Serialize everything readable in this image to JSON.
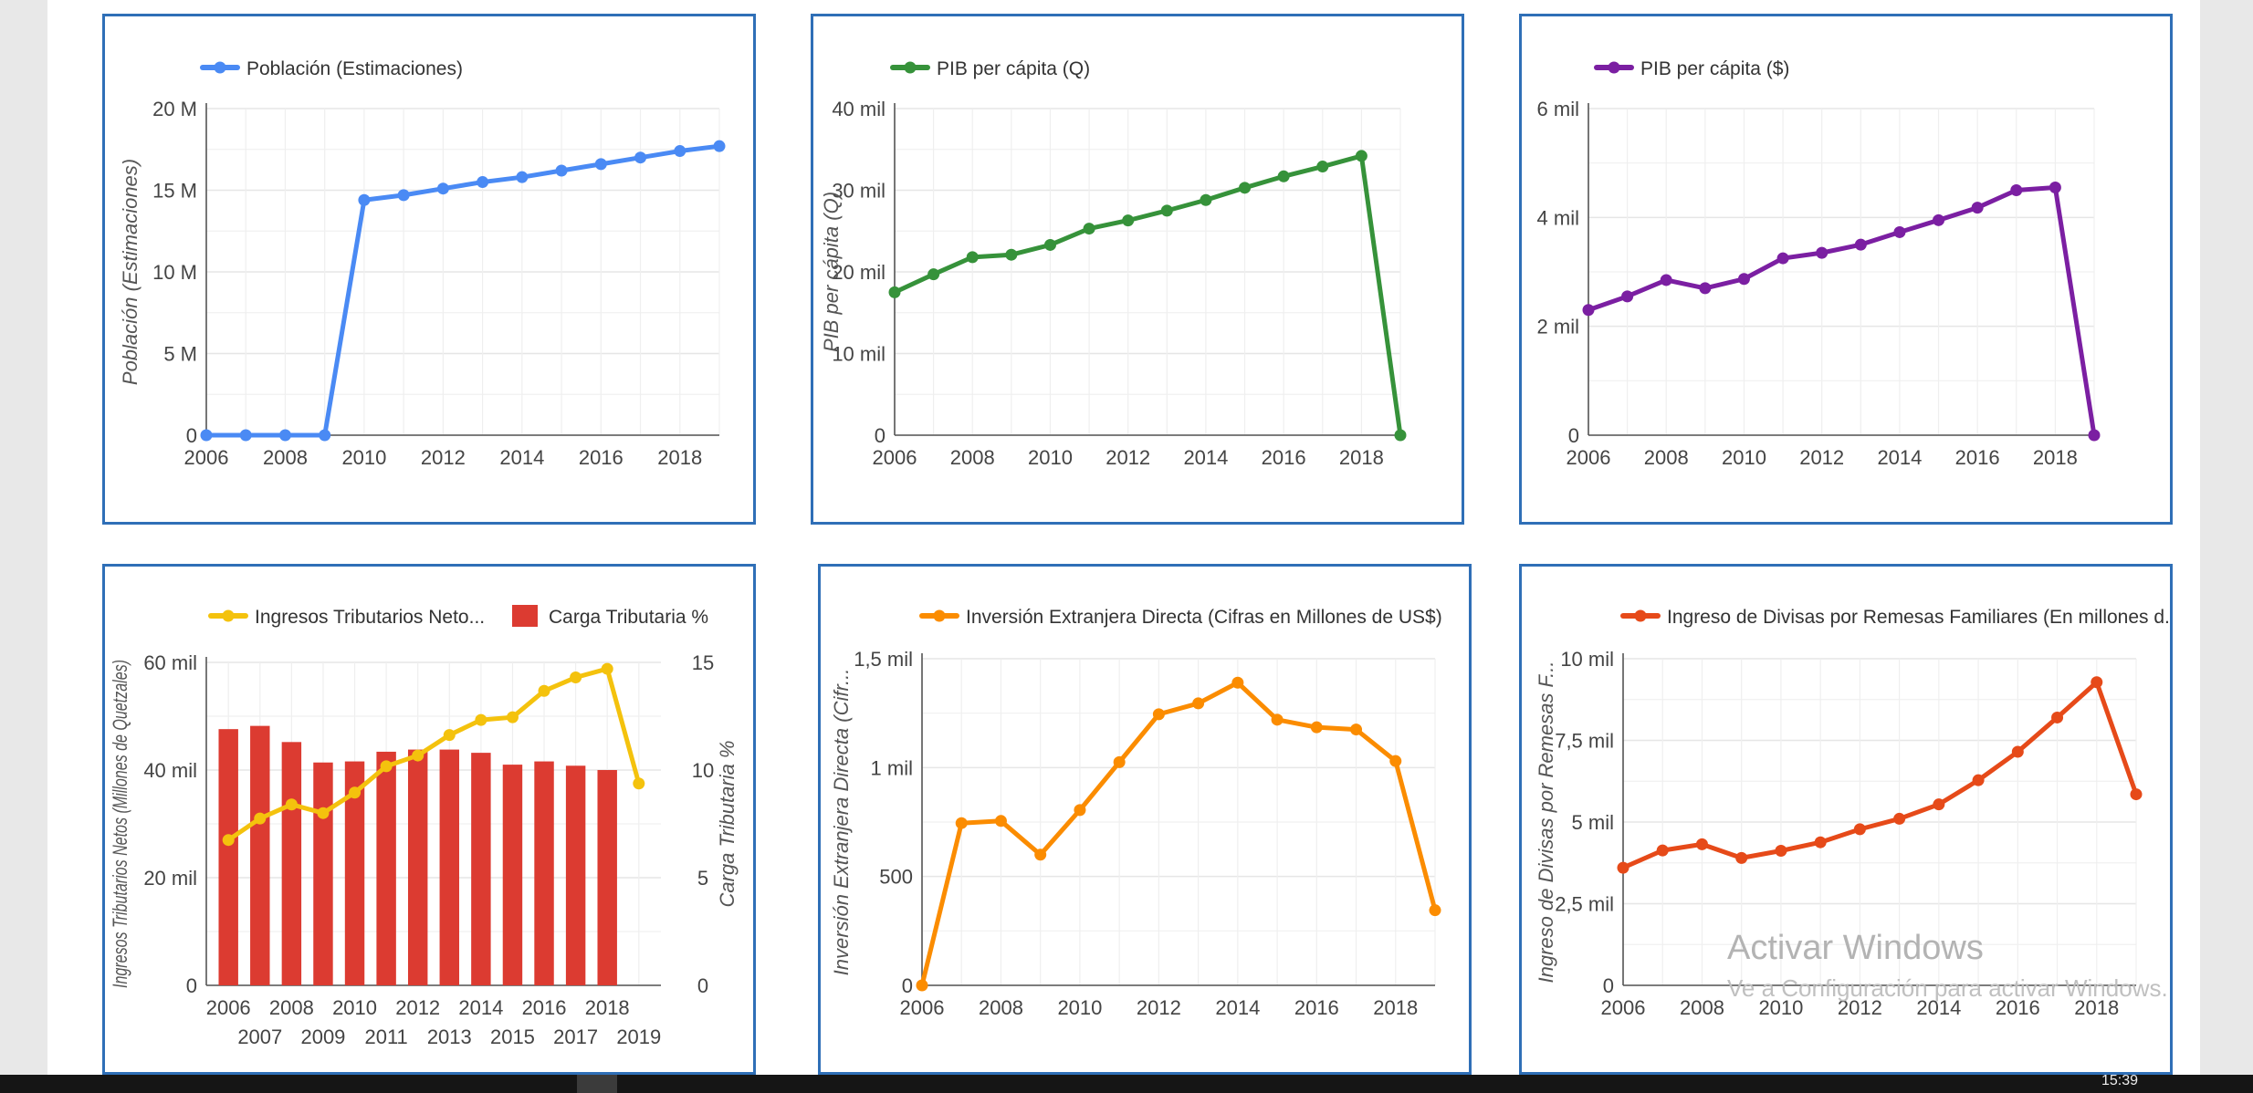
{
  "colors": {
    "panel_border": "#2f6fb7",
    "grid": "#e6e6e6",
    "axis": "#555555",
    "text": "#444444"
  },
  "watermark": {
    "title": "Activar Windows",
    "subtitle": "Ve a Configuración para activar Windows."
  },
  "taskbar": {
    "clock": "15:39"
  },
  "chart_data": [
    {
      "type": "line",
      "legend": [
        "Población (Estimaciones)"
      ],
      "ylabel": "Población (Estimaciones)",
      "y2label": "",
      "x": [
        2006,
        2007,
        2008,
        2009,
        2010,
        2011,
        2012,
        2013,
        2014,
        2015,
        2016,
        2017,
        2018,
        2019
      ],
      "xlim": [
        2006,
        2019
      ],
      "xticks": [
        "2006",
        "2008",
        "2010",
        "2012",
        "2014",
        "2016",
        "2018"
      ],
      "xtick_values": [
        2006,
        2008,
        2010,
        2012,
        2014,
        2016,
        2018
      ],
      "xticks_row2": [],
      "xtick_values_row2": [],
      "ylim": [
        0,
        20000000
      ],
      "yticks": [
        "0",
        "5 M",
        "10 M",
        "15 M",
        "20 M"
      ],
      "ytick_values": [
        0,
        5000000,
        10000000,
        15000000,
        20000000
      ],
      "series": [
        {
          "name": "Población (Estimaciones)",
          "color": "#4a8af4",
          "values": [
            0,
            0,
            0,
            0,
            14400000,
            14700000,
            15100000,
            15500000,
            15800000,
            16200000,
            16600000,
            17000000,
            17400000,
            17700000
          ]
        }
      ]
    },
    {
      "type": "line",
      "legend": [
        "PIB per cápita (Q)"
      ],
      "ylabel": "PIB per cápita (Q)",
      "y2label": "",
      "x": [
        2006,
        2007,
        2008,
        2009,
        2010,
        2011,
        2012,
        2013,
        2014,
        2015,
        2016,
        2017,
        2018,
        2019
      ],
      "xlim": [
        2006,
        2019
      ],
      "xticks": [
        "2006",
        "2008",
        "2010",
        "2012",
        "2014",
        "2016",
        "2018"
      ],
      "xtick_values": [
        2006,
        2008,
        2010,
        2012,
        2014,
        2016,
        2018
      ],
      "xticks_row2": [],
      "xtick_values_row2": [],
      "ylim": [
        0,
        40000
      ],
      "yticks": [
        "0",
        "10 mil",
        "20 mil",
        "30 mil",
        "40 mil"
      ],
      "ytick_values": [
        0,
        10000,
        20000,
        30000,
        40000
      ],
      "series": [
        {
          "name": "PIB per cápita (Q)",
          "color": "#36923a",
          "values": [
            17500,
            19700,
            21800,
            22100,
            23300,
            25300,
            26300,
            27500,
            28800,
            30300,
            31700,
            32900,
            34200,
            0
          ]
        }
      ]
    },
    {
      "type": "line",
      "legend": [
        "PIB per cápita ($)"
      ],
      "ylabel": "",
      "y2label": "",
      "x": [
        2006,
        2007,
        2008,
        2009,
        2010,
        2011,
        2012,
        2013,
        2014,
        2015,
        2016,
        2017,
        2018,
        2019
      ],
      "xlim": [
        2006,
        2019
      ],
      "xticks": [
        "2006",
        "2008",
        "2010",
        "2012",
        "2014",
        "2016",
        "2018"
      ],
      "xtick_values": [
        2006,
        2008,
        2010,
        2012,
        2014,
        2016,
        2018
      ],
      "xticks_row2": [],
      "xtick_values_row2": [],
      "ylim": [
        0,
        6000
      ],
      "yticks": [
        "0",
        "2 mil",
        "4 mil",
        "6 mil"
      ],
      "ytick_values": [
        0,
        2000,
        4000,
        6000
      ],
      "series": [
        {
          "name": "PIB per cápita ($)",
          "color": "#7b1fa2",
          "values": [
            2300,
            2550,
            2850,
            2700,
            2870,
            3250,
            3350,
            3500,
            3730,
            3950,
            4180,
            4500,
            4550,
            0
          ]
        }
      ]
    },
    {
      "type": "combo",
      "legend": [
        "Ingresos Tributarios Neto...",
        "Carga Tributaria %"
      ],
      "ylabel": "Ingresos Tributarios Netos (Millones de Quetzales)",
      "y2label": "Carga Tributaria %",
      "x": [
        2006,
        2007,
        2008,
        2009,
        2010,
        2011,
        2012,
        2013,
        2014,
        2015,
        2016,
        2017,
        2018,
        2019
      ],
      "xlim": [
        2005.3,
        2019.7
      ],
      "xticks": [
        "2006",
        "2008",
        "2010",
        "2012",
        "2014",
        "2016",
        "2018"
      ],
      "xtick_values": [
        2006,
        2008,
        2010,
        2012,
        2014,
        2016,
        2018
      ],
      "xticks_row2": [
        "2007",
        "2009",
        "2011",
        "2013",
        "2015",
        "2017",
        "2019"
      ],
      "xtick_values_row2": [
        2007,
        2009,
        2011,
        2013,
        2015,
        2017,
        2019
      ],
      "ylim": [
        0,
        60000
      ],
      "yticks": [
        "0",
        "20 mil",
        "40 mil",
        "60 mil"
      ],
      "ytick_values": [
        0,
        20000,
        40000,
        60000
      ],
      "y2lim": [
        0,
        15
      ],
      "y2ticks": [
        "0",
        "5",
        "10",
        "15"
      ],
      "y2tick_values": [
        0,
        5,
        10,
        15
      ],
      "bars": {
        "name": "Carga Tributaria %",
        "color": "#dc3b31",
        "values": [
          11.9,
          12.05,
          11.3,
          10.35,
          10.4,
          10.85,
          10.95,
          10.95,
          10.8,
          10.25,
          10.4,
          10.2,
          10.0,
          null
        ]
      },
      "series": [
        {
          "name": "Ingresos Tributarios Netos",
          "color": "#f4c20d",
          "values": [
            27000,
            31000,
            33600,
            32000,
            35800,
            40700,
            42700,
            46500,
            49300,
            49800,
            54700,
            57200,
            58800,
            37500
          ]
        }
      ]
    },
    {
      "type": "line",
      "legend": [
        "Inversión Extranjera Directa (Cifras en Millones de US$)"
      ],
      "ylabel": "Inversión Extranjera Directa (Cifr...",
      "y2label": "",
      "x": [
        2006,
        2007,
        2008,
        2009,
        2010,
        2011,
        2012,
        2013,
        2014,
        2015,
        2016,
        2017,
        2018,
        2019
      ],
      "xlim": [
        2006,
        2019
      ],
      "xticks": [
        "2006",
        "2008",
        "2010",
        "2012",
        "2014",
        "2016",
        "2018"
      ],
      "xtick_values": [
        2006,
        2008,
        2010,
        2012,
        2014,
        2016,
        2018
      ],
      "xticks_row2": [],
      "xtick_values_row2": [],
      "ylim": [
        0,
        1500
      ],
      "yticks": [
        "0",
        "500",
        "1 mil",
        "1,5 mil"
      ],
      "ytick_values": [
        0,
        500,
        1000,
        1500
      ],
      "series": [
        {
          "name": "Inversión Extranjera Directa",
          "color": "#fb8c00",
          "values": [
            0,
            745,
            755,
            600,
            805,
            1025,
            1245,
            1295,
            1390,
            1220,
            1185,
            1175,
            1030,
            345
          ]
        }
      ]
    },
    {
      "type": "line",
      "legend": [
        "Ingreso de Divisas por Remesas Familiares (En millones d..."
      ],
      "ylabel": "Ingreso de Divisas por Remesas F...",
      "y2label": "",
      "x": [
        2006,
        2007,
        2008,
        2009,
        2010,
        2011,
        2012,
        2013,
        2014,
        2015,
        2016,
        2017,
        2018,
        2019
      ],
      "xlim": [
        2006,
        2019
      ],
      "xticks": [
        "2006",
        "2008",
        "2010",
        "2012",
        "2014",
        "2016",
        "2018"
      ],
      "xtick_values": [
        2006,
        2008,
        2010,
        2012,
        2014,
        2016,
        2018
      ],
      "xticks_row2": [],
      "xtick_values_row2": [],
      "ylim": [
        0,
        10000
      ],
      "yticks": [
        "0",
        "2,5 mil",
        "5 mil",
        "7,5 mil",
        "10 mil"
      ],
      "ytick_values": [
        0,
        2500,
        5000,
        7500,
        10000
      ],
      "series": [
        {
          "name": "Ingreso de Divisas por Remesas Familiares",
          "color": "#e64a19",
          "values": [
            3600,
            4130,
            4320,
            3900,
            4120,
            4380,
            4780,
            5100,
            5540,
            6280,
            7150,
            8200,
            9280,
            5850
          ]
        }
      ]
    }
  ]
}
